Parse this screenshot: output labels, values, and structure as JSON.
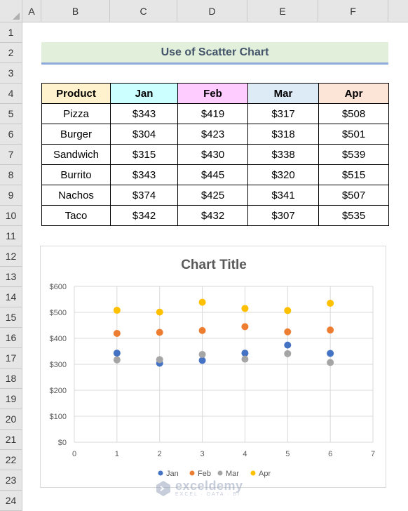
{
  "columns": [
    "A",
    "B",
    "C",
    "D",
    "E",
    "F"
  ],
  "rows": [
    "1",
    "2",
    "3",
    "4",
    "5",
    "6",
    "7",
    "8",
    "9",
    "10",
    "11",
    "12",
    "13",
    "14",
    "15",
    "16",
    "17",
    "18",
    "19",
    "20",
    "21",
    "22",
    "23",
    "24"
  ],
  "sheet_title": "Use of Scatter Chart",
  "table": {
    "headers": [
      "Product",
      "Jan",
      "Feb",
      "Mar",
      "Apr"
    ],
    "header_colors": [
      "#fff2cc",
      "#ccffff",
      "#ffccff",
      "#ddebf7",
      "#fce4d6"
    ],
    "rows": [
      [
        "Pizza",
        "$343",
        "$419",
        "$317",
        "$508"
      ],
      [
        "Burger",
        "$304",
        "$423",
        "$318",
        "$501"
      ],
      [
        "Sandwich",
        "$315",
        "$430",
        "$338",
        "$539"
      ],
      [
        "Burrito",
        "$343",
        "$445",
        "$320",
        "$515"
      ],
      [
        "Nachos",
        "$374",
        "$425",
        "$341",
        "$507"
      ],
      [
        "Taco",
        "$342",
        "$432",
        "$307",
        "$535"
      ]
    ]
  },
  "chart_data": {
    "type": "scatter",
    "title": "Chart Title",
    "x": [
      1,
      2,
      3,
      4,
      5,
      6
    ],
    "xlim": [
      0,
      7
    ],
    "x_ticks": [
      "0",
      "1",
      "2",
      "3",
      "4",
      "5",
      "6",
      "7"
    ],
    "ylim": [
      0,
      600
    ],
    "y_ticks": [
      "$0",
      "$100",
      "$200",
      "$300",
      "$400",
      "$500",
      "$600"
    ],
    "grid": true,
    "legend_position": "bottom",
    "series": [
      {
        "name": "Jan",
        "color": "#4472c4",
        "values": [
          343,
          304,
          315,
          343,
          374,
          342
        ]
      },
      {
        "name": "Feb",
        "color": "#ed7d31",
        "values": [
          419,
          423,
          430,
          445,
          425,
          432
        ]
      },
      {
        "name": "Mar",
        "color": "#a5a5a5",
        "values": [
          317,
          318,
          338,
          320,
          341,
          307
        ]
      },
      {
        "name": "Apr",
        "color": "#ffc000",
        "values": [
          508,
          501,
          539,
          515,
          507,
          535
        ]
      }
    ]
  },
  "watermark": {
    "name": "exceldemy",
    "sub": "EXCEL · DATA · BI"
  }
}
